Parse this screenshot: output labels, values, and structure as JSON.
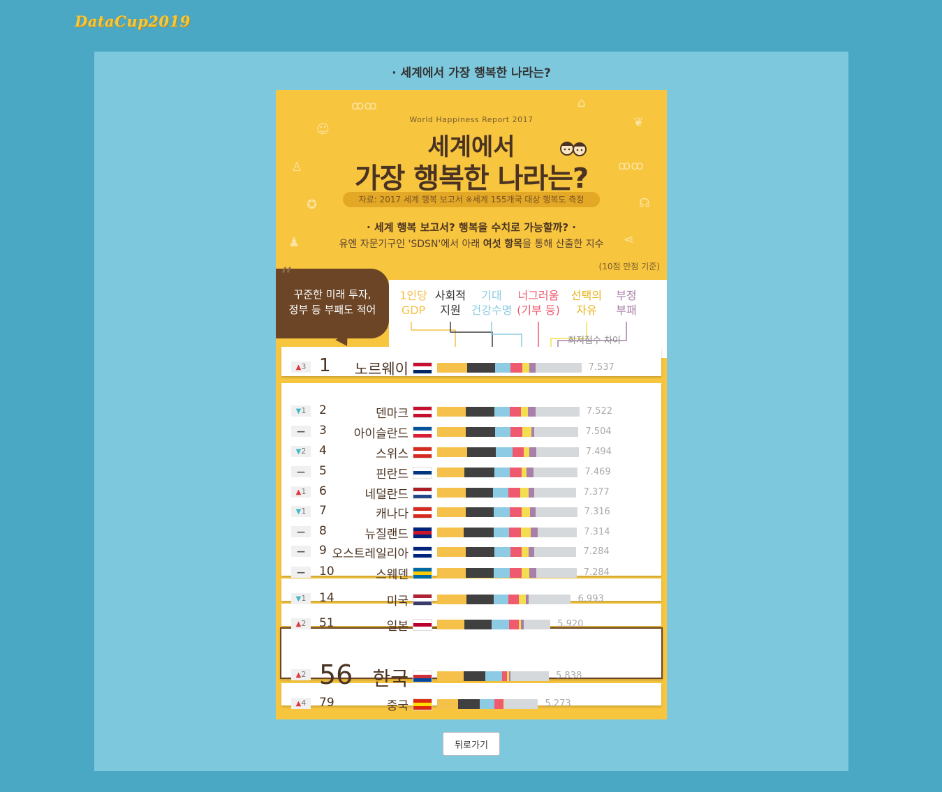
{
  "site": {
    "logo": "DataCup2019"
  },
  "page": {
    "heading": "· 세계에서 가장 행복한 나라는?",
    "back_button": "뒤로가기"
  },
  "infographic": {
    "report_name": "World Happiness Report 2017",
    "title_line1": "세계에서",
    "title_line2": "가장 행복한 나라는?",
    "source": "자료: 2017 세계 행복 보고서  ※세계 155개국 대상 행복도 측정",
    "question": "·  세계 행복 보고서? 행복을 수치로 가능할까?  ·",
    "description_pre": "유엔 자문기구인 'SDSN'에서 아래 ",
    "description_bold": "여섯 항목",
    "description_post": "을 통해 산출한 지수",
    "scale_note": "(10점 만점 기준)",
    "bubble_line1": "꾸준한 미래 투자,",
    "bubble_line2": "정부 등 부패도 적어",
    "gap_label": "최저점수 차이",
    "legend": [
      {
        "line1": "1인당",
        "line2": "GDP",
        "color": "#f6c14b"
      },
      {
        "line1": "사회적",
        "line2": "지원",
        "color": "#404040"
      },
      {
        "line1": "기대",
        "line2": "건강수명",
        "color": "#8ccbe3"
      },
      {
        "line1": "너그러움",
        "line2": "(기부 등)",
        "color": "#ef5a6f"
      },
      {
        "line1": "선택의",
        "line2": "자유",
        "color": "#f4dd50"
      },
      {
        "line1": "부정",
        "line2": "부패",
        "color": "#a77fa8"
      }
    ]
  },
  "chart_data": {
    "type": "bar",
    "stacked": true,
    "title": "세계에서 가장 행복한 나라는?",
    "segment_colors": [
      "#f6c14b",
      "#404040",
      "#8ccbe3",
      "#ef5a6f",
      "#f4dd50",
      "#a77fa8",
      "#d5d9dc"
    ],
    "rows": [
      {
        "change_dir": "up",
        "change": "3",
        "rank": "1",
        "country": "노르웨이",
        "score": "7.537",
        "segs": [
          1.56,
          1.48,
          0.8,
          0.63,
          0.35,
          0.32,
          2.4
        ]
      },
      {
        "change_dir": "down",
        "change": "1",
        "rank": "2",
        "country": "덴마크",
        "score": "7.522",
        "segs": [
          1.48,
          1.51,
          0.79,
          0.6,
          0.35,
          0.4,
          2.31
        ]
      },
      {
        "change_dir": "none",
        "change": "",
        "rank": "3",
        "country": "아이슬란드",
        "score": "7.504",
        "segs": [
          1.48,
          1.56,
          0.8,
          0.63,
          0.45,
          0.15,
          2.32
        ]
      },
      {
        "change_dir": "down",
        "change": "2",
        "rank": "4",
        "country": "스위스",
        "score": "7.494",
        "segs": [
          1.56,
          1.52,
          0.85,
          0.6,
          0.29,
          0.37,
          2.21
        ]
      },
      {
        "change_dir": "none",
        "change": "",
        "rank": "5",
        "country": "핀란드",
        "score": "7.469",
        "segs": [
          1.44,
          1.54,
          0.81,
          0.62,
          0.25,
          0.38,
          2.31
        ]
      },
      {
        "change_dir": "up",
        "change": "1",
        "rank": "6",
        "country": "네덜란드",
        "score": "7.377",
        "segs": [
          1.5,
          1.43,
          0.81,
          0.59,
          0.47,
          0.28,
          2.2
        ]
      },
      {
        "change_dir": "down",
        "change": "1",
        "rank": "7",
        "country": "캐나다",
        "score": "7.316",
        "segs": [
          1.48,
          1.48,
          0.83,
          0.61,
          0.44,
          0.29,
          2.19
        ]
      },
      {
        "change_dir": "none",
        "change": "",
        "rank": "8",
        "country": "뉴질랜드",
        "score": "7.314",
        "segs": [
          1.4,
          1.55,
          0.82,
          0.61,
          0.5,
          0.38,
          2.05
        ]
      },
      {
        "change_dir": "none",
        "change": "",
        "rank": "9",
        "country": "오스트레일리아",
        "score": "7.284",
        "segs": [
          1.48,
          1.51,
          0.84,
          0.6,
          0.34,
          0.3,
          2.21
        ]
      },
      {
        "change_dir": "none",
        "change": "",
        "rank": "10",
        "country": "스웨덴",
        "score": "7.284",
        "segs": [
          1.49,
          1.48,
          0.83,
          0.61,
          0.4,
          0.38,
          2.1
        ]
      },
      {
        "change_dir": "down",
        "change": "1",
        "rank": "14",
        "country": "미국",
        "score": "6.993",
        "segs": [
          1.55,
          1.41,
          0.77,
          0.53,
          0.37,
          0.15,
          2.21
        ]
      },
      {
        "change_dir": "up",
        "change": "2",
        "rank": "51",
        "country": "일본",
        "score": "5.920",
        "segs": [
          1.42,
          1.44,
          0.91,
          0.5,
          0.1,
          0.15,
          1.4
        ]
      },
      {
        "change_dir": "up",
        "change": "2",
        "rank": "56",
        "country": "한국",
        "score": "5.838",
        "segs": [
          1.4,
          1.13,
          0.86,
          0.25,
          0.13,
          0.06,
          2.01
        ]
      },
      {
        "change_dir": "up",
        "change": "4",
        "rank": "79",
        "country": "중국",
        "score": "5.273",
        "segs": [
          1.08,
          1.16,
          0.74,
          0.5,
          0.02,
          0.0,
          1.77
        ]
      }
    ]
  }
}
